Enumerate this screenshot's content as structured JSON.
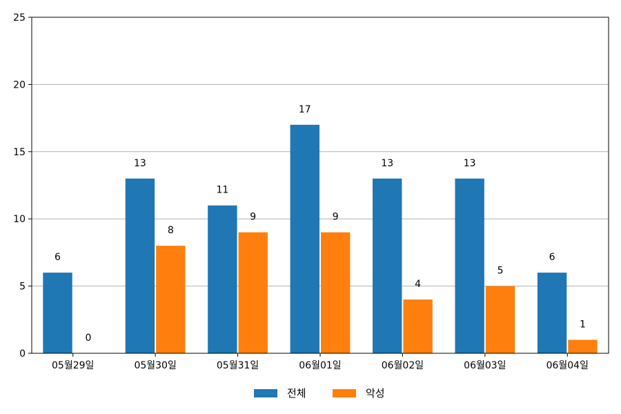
{
  "chart_data": {
    "type": "bar",
    "categories": [
      "05월29일",
      "05월30일",
      "05월31일",
      "06월01일",
      "06월02일",
      "06월03일",
      "06월04일"
    ],
    "series": [
      {
        "name": "전체",
        "color": "#1f77b4",
        "values": [
          6,
          13,
          11,
          17,
          13,
          13,
          6
        ]
      },
      {
        "name": "악성",
        "color": "#ff7f0e",
        "values": [
          0,
          8,
          9,
          9,
          4,
          5,
          1
        ]
      }
    ],
    "ylim": [
      0,
      25
    ],
    "yticks": [
      0,
      5,
      10,
      15,
      20,
      25
    ],
    "grid": "horizontal",
    "legend_position": "bottom-center",
    "title": "",
    "xlabel": "",
    "ylabel": ""
  }
}
